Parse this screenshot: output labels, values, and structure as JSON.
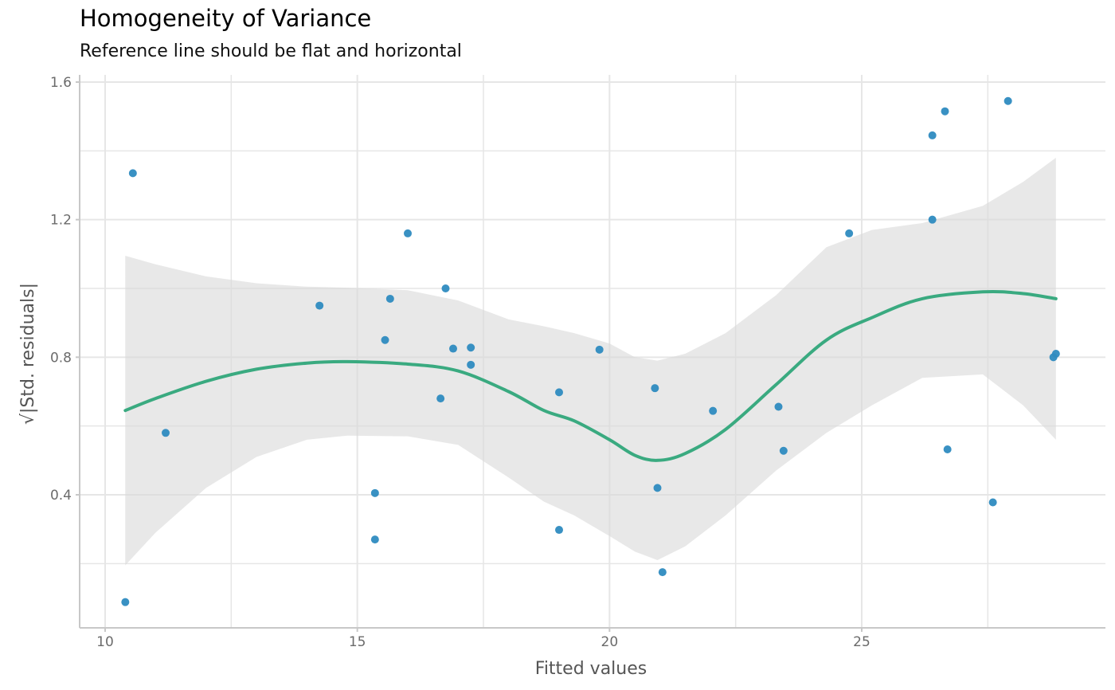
{
  "chart_data": {
    "type": "scatter",
    "title": "Homogeneity of Variance",
    "subtitle": "Reference line should be flat and horizontal",
    "xlabel": "Fitted values",
    "ylabel": "√|Std. residuals|",
    "xlim": [
      9.5,
      29.8
    ],
    "ylim": [
      0.04,
      1.64
    ],
    "x_ticks": [
      10,
      15,
      20,
      25
    ],
    "y_ticks": [
      0.4,
      0.8,
      1.2,
      1.6
    ],
    "x_tick_labels": [
      "10",
      "15",
      "20",
      "25"
    ],
    "y_tick_labels": [
      "0.4",
      "0.8",
      "1.2",
      "1.6"
    ],
    "grid": true,
    "colors": {
      "points": "#2e8bc0",
      "smooth": "#3aaa80",
      "band": "#d9d9d9"
    },
    "points": [
      {
        "x": 10.4,
        "y": 0.088
      },
      {
        "x": 10.55,
        "y": 1.335
      },
      {
        "x": 11.2,
        "y": 0.58
      },
      {
        "x": 14.25,
        "y": 0.95
      },
      {
        "x": 15.35,
        "y": 0.405
      },
      {
        "x": 15.35,
        "y": 0.27
      },
      {
        "x": 15.55,
        "y": 0.85
      },
      {
        "x": 15.65,
        "y": 0.97
      },
      {
        "x": 16.0,
        "y": 1.16
      },
      {
        "x": 16.65,
        "y": 0.68
      },
      {
        "x": 16.75,
        "y": 1.0
      },
      {
        "x": 16.9,
        "y": 0.825
      },
      {
        "x": 17.25,
        "y": 0.828
      },
      {
        "x": 17.25,
        "y": 0.778
      },
      {
        "x": 19.0,
        "y": 0.698
      },
      {
        "x": 19.0,
        "y": 0.298
      },
      {
        "x": 19.8,
        "y": 0.822
      },
      {
        "x": 20.9,
        "y": 0.71
      },
      {
        "x": 20.95,
        "y": 0.42
      },
      {
        "x": 21.05,
        "y": 0.175
      },
      {
        "x": 22.05,
        "y": 0.644
      },
      {
        "x": 23.35,
        "y": 0.656
      },
      {
        "x": 23.45,
        "y": 0.528
      },
      {
        "x": 24.75,
        "y": 1.16
      },
      {
        "x": 26.4,
        "y": 1.2
      },
      {
        "x": 26.4,
        "y": 1.445
      },
      {
        "x": 26.65,
        "y": 1.515
      },
      {
        "x": 26.7,
        "y": 0.532
      },
      {
        "x": 27.6,
        "y": 0.378
      },
      {
        "x": 27.9,
        "y": 1.545
      },
      {
        "x": 28.8,
        "y": 0.8
      },
      {
        "x": 28.85,
        "y": 0.81
      }
    ],
    "smooth": [
      {
        "x": 10.4,
        "y": 0.645,
        "lo": 0.195,
        "hi": 1.095
      },
      {
        "x": 11.0,
        "y": 0.68,
        "lo": 0.29,
        "hi": 1.07
      },
      {
        "x": 12.0,
        "y": 0.73,
        "lo": 0.42,
        "hi": 1.035
      },
      {
        "x": 13.0,
        "y": 0.765,
        "lo": 0.51,
        "hi": 1.015
      },
      {
        "x": 14.0,
        "y": 0.783,
        "lo": 0.56,
        "hi": 1.005
      },
      {
        "x": 14.8,
        "y": 0.787,
        "lo": 0.572,
        "hi": 1.002
      },
      {
        "x": 16.0,
        "y": 0.78,
        "lo": 0.57,
        "hi": 0.995
      },
      {
        "x": 17.0,
        "y": 0.76,
        "lo": 0.545,
        "hi": 0.965
      },
      {
        "x": 18.0,
        "y": 0.7,
        "lo": 0.45,
        "hi": 0.91
      },
      {
        "x": 18.7,
        "y": 0.645,
        "lo": 0.38,
        "hi": 0.89
      },
      {
        "x": 19.3,
        "y": 0.615,
        "lo": 0.34,
        "hi": 0.87
      },
      {
        "x": 20.0,
        "y": 0.56,
        "lo": 0.28,
        "hi": 0.84
      },
      {
        "x": 20.5,
        "y": 0.515,
        "lo": 0.235,
        "hi": 0.8
      },
      {
        "x": 20.95,
        "y": 0.5,
        "lo": 0.21,
        "hi": 0.79
      },
      {
        "x": 21.5,
        "y": 0.52,
        "lo": 0.25,
        "hi": 0.81
      },
      {
        "x": 22.3,
        "y": 0.59,
        "lo": 0.34,
        "hi": 0.87
      },
      {
        "x": 23.3,
        "y": 0.72,
        "lo": 0.47,
        "hi": 0.98
      },
      {
        "x": 24.3,
        "y": 0.85,
        "lo": 0.58,
        "hi": 1.12
      },
      {
        "x": 25.2,
        "y": 0.915,
        "lo": 0.66,
        "hi": 1.17
      },
      {
        "x": 26.2,
        "y": 0.97,
        "lo": 0.74,
        "hi": 1.19
      },
      {
        "x": 27.4,
        "y": 0.99,
        "lo": 0.75,
        "hi": 1.24
      },
      {
        "x": 28.2,
        "y": 0.985,
        "lo": 0.66,
        "hi": 1.31
      },
      {
        "x": 28.85,
        "y": 0.97,
        "lo": 0.56,
        "hi": 1.38
      }
    ]
  }
}
